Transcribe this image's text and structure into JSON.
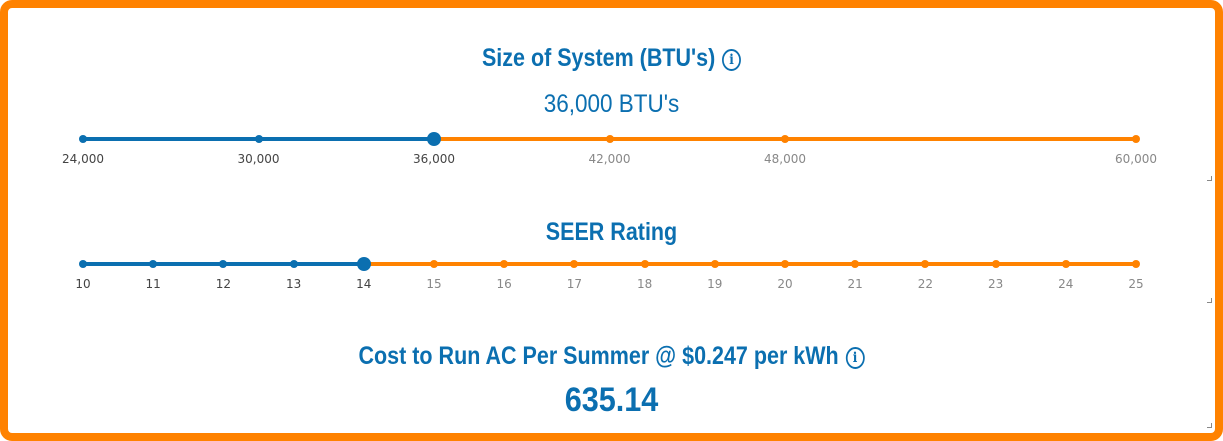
{
  "system": {
    "title": "Size of System (BTU's)",
    "info_icon": "info-icon",
    "value_text": "36,000 BTU's",
    "selected": 36000,
    "ticks": [
      {
        "value": 24000,
        "label": "24,000"
      },
      {
        "value": 30000,
        "label": "30,000"
      },
      {
        "value": 36000,
        "label": "36,000"
      },
      {
        "value": 42000,
        "label": "42,000"
      },
      {
        "value": 48000,
        "label": "48,000"
      },
      {
        "value": 60000,
        "label": "60,000"
      }
    ]
  },
  "seer": {
    "title": "SEER Rating",
    "selected": 14,
    "ticks": [
      {
        "value": 10,
        "label": "10"
      },
      {
        "value": 11,
        "label": "11"
      },
      {
        "value": 12,
        "label": "12"
      },
      {
        "value": 13,
        "label": "13"
      },
      {
        "value": 14,
        "label": "14"
      },
      {
        "value": 15,
        "label": "15"
      },
      {
        "value": 16,
        "label": "16"
      },
      {
        "value": 17,
        "label": "17"
      },
      {
        "value": 18,
        "label": "18"
      },
      {
        "value": 19,
        "label": "19"
      },
      {
        "value": 20,
        "label": "20"
      },
      {
        "value": 21,
        "label": "21"
      },
      {
        "value": 22,
        "label": "22"
      },
      {
        "value": 23,
        "label": "23"
      },
      {
        "value": 24,
        "label": "24"
      },
      {
        "value": 25,
        "label": "25"
      }
    ]
  },
  "cost": {
    "title": "Cost to Run AC Per Summer @ $0.247 per kWh",
    "info_icon": "info-icon",
    "value": "635.14"
  },
  "colors": {
    "accent_blue": "#0b6fb0",
    "accent_orange": "#ff8200"
  }
}
